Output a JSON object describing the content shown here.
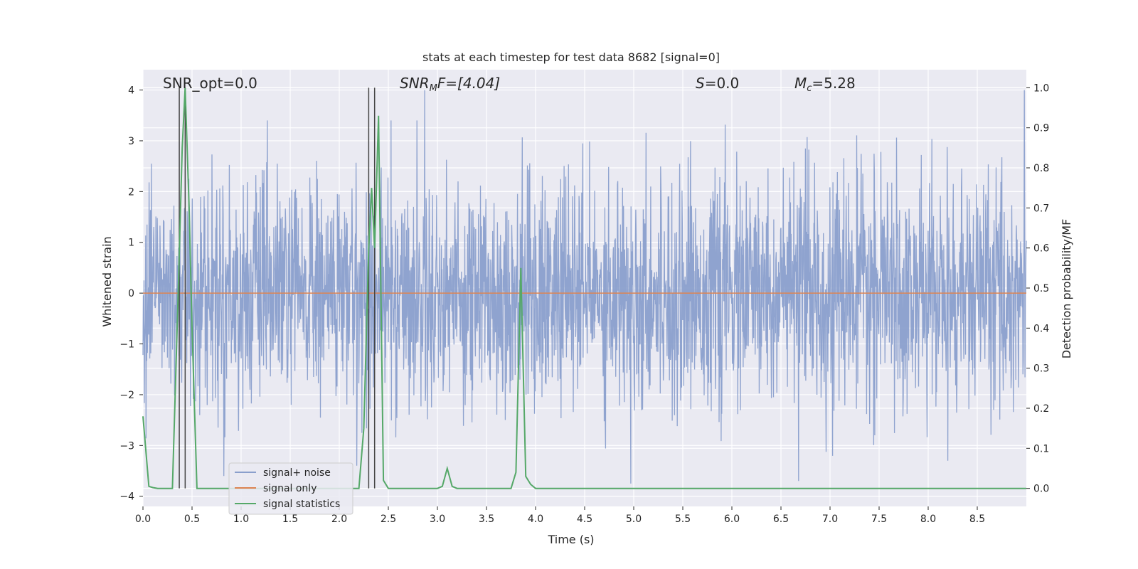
{
  "chart_data": {
    "type": "line",
    "title": "stats at each timestep for test data 8682 [signal=0]",
    "xlabel": "Time (s)",
    "ylabel": "Whitened strain",
    "y2label": "Detection probability/MF",
    "xlim": [
      0.0,
      9.0
    ],
    "ylim": [
      -4.2,
      4.4
    ],
    "y2lim": [
      -0.045,
      1.045
    ],
    "xticks": [
      "0.0",
      "0.5",
      "1.0",
      "1.5",
      "2.0",
      "2.5",
      "3.0",
      "3.5",
      "4.0",
      "4.5",
      "5.0",
      "5.5",
      "6.0",
      "6.5",
      "7.0",
      "7.5",
      "8.0",
      "8.5"
    ],
    "yticks": [
      "4",
      "3",
      "2",
      "1",
      "0",
      "−1",
      "−2",
      "−3",
      "−4"
    ],
    "y2ticks": [
      "1.0",
      "0.9",
      "0.8",
      "0.7",
      "0.6",
      "0.5",
      "0.4",
      "0.3",
      "0.2",
      "0.1",
      "0.0"
    ],
    "grid": true,
    "legend_placement": "lower-left",
    "annotations": {
      "snr_opt": "SNR_opt=0.0",
      "snr_mf_base": "SNR",
      "snr_mf_sub": "M",
      "snr_mf_rest": "F=[4.04]",
      "s_label": "S",
      "s_rest": "=0.0",
      "mc_base": "M",
      "mc_sub": "c",
      "mc_rest": "=5.28"
    },
    "series": [
      {
        "name": "signal+ noise",
        "color": "#8a9fcc",
        "description_visible": "dense noisy strain trace",
        "noise_std": 1.1,
        "peak_points": [
          [
            2.87,
            4.0
          ],
          [
            8.98,
            4.0
          ],
          [
            4.97,
            -3.75
          ],
          [
            6.68,
            -3.7
          ],
          [
            8.2,
            -3.3
          ]
        ]
      },
      {
        "name": "signal only",
        "color": "#dd8452",
        "y_value": 0.0
      },
      {
        "name": "signal statistics",
        "color": "#55a868",
        "axis": "right",
        "x": [
          0.0,
          0.06,
          0.1,
          0.15,
          0.2,
          0.25,
          0.3,
          0.36,
          0.4,
          0.43,
          0.47,
          0.5,
          0.55,
          0.6,
          0.8,
          1.0,
          1.5,
          2.0,
          2.2,
          2.25,
          2.3,
          2.33,
          2.36,
          2.4,
          2.45,
          2.5,
          2.8,
          3.0,
          3.05,
          3.1,
          3.15,
          3.2,
          3.3,
          3.5,
          3.75,
          3.8,
          3.85,
          3.9,
          3.95,
          4.0,
          4.5,
          5.0,
          6.0,
          7.0,
          8.0,
          9.0
        ],
        "y": [
          0.18,
          0.005,
          0.002,
          0.0,
          0.0,
          0.0,
          0.0,
          0.5,
          0.85,
          1.0,
          0.7,
          0.4,
          0.0,
          0.0,
          0.0,
          0.0,
          0.0,
          0.0,
          0.0,
          0.15,
          0.6,
          0.75,
          0.6,
          0.93,
          0.02,
          0.0,
          0.0,
          0.0,
          0.005,
          0.05,
          0.005,
          0.0,
          0.0,
          0.0,
          0.0,
          0.04,
          0.55,
          0.03,
          0.01,
          0.0,
          0.0,
          0.0,
          0.0,
          0.0,
          0.0,
          0.0
        ]
      }
    ],
    "vertical_lines": {
      "color": "#444444",
      "x": [
        0.37,
        0.43,
        2.3,
        2.36
      ]
    }
  }
}
